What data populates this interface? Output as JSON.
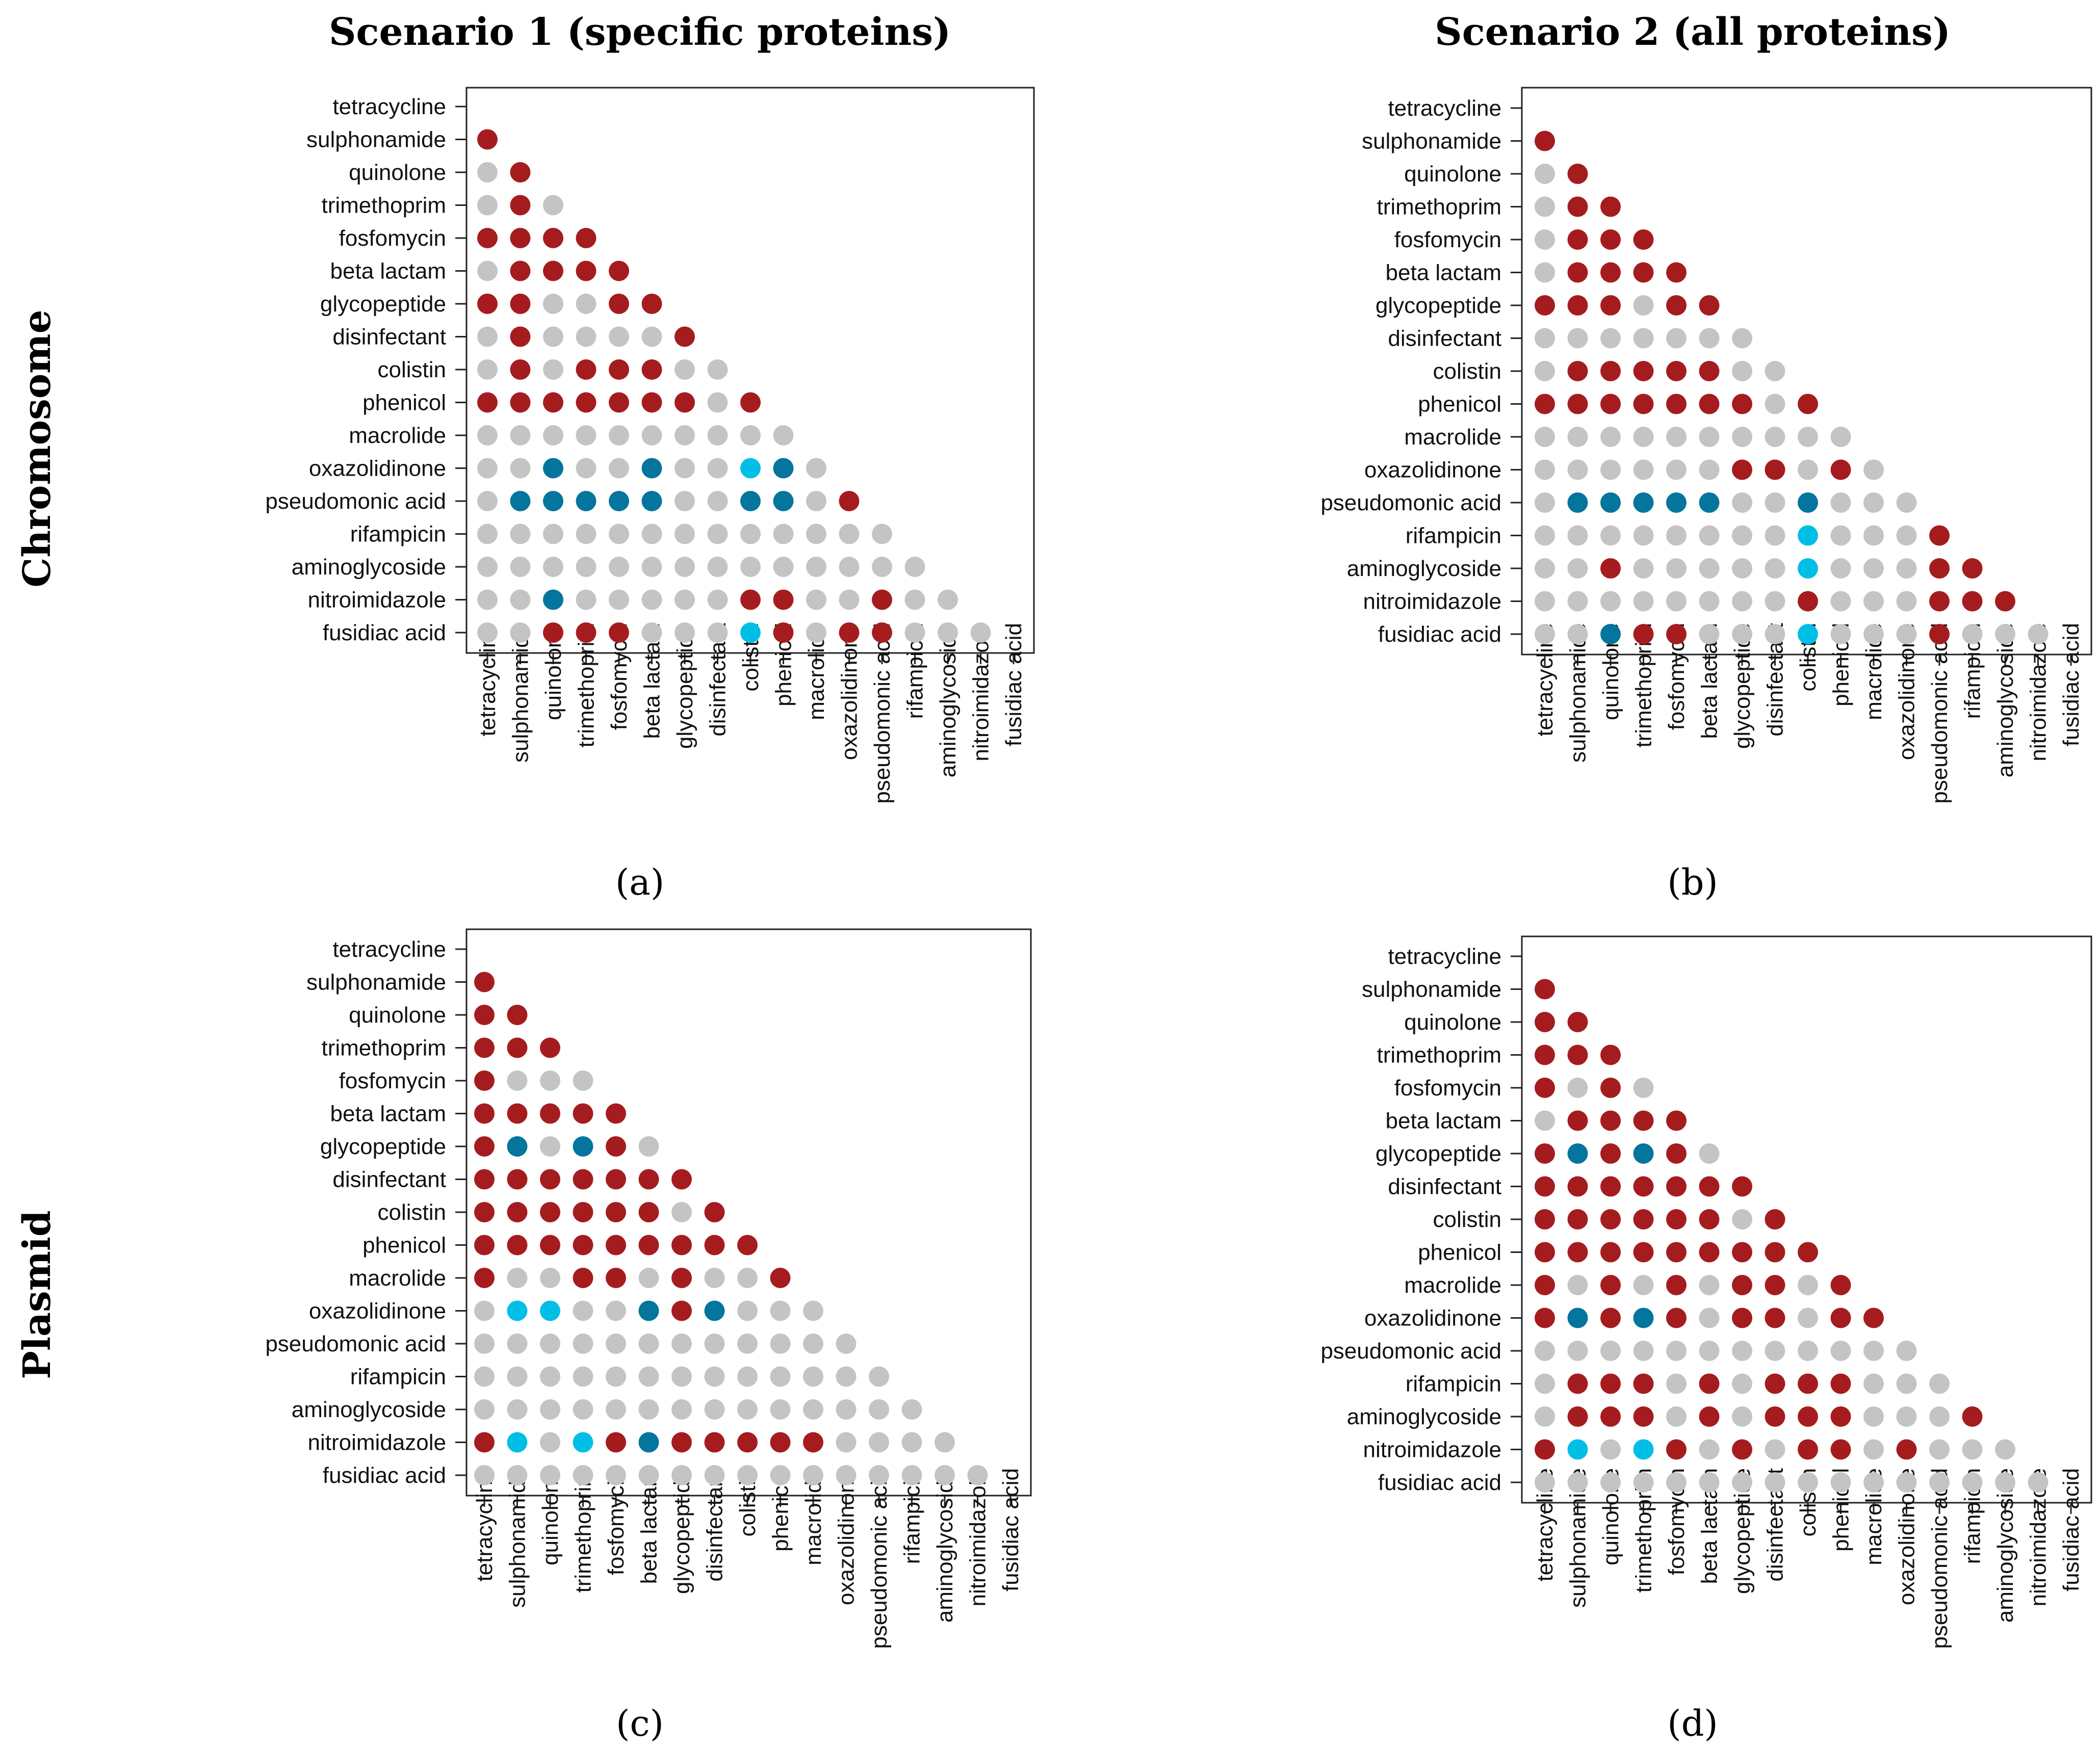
{
  "figure": {
    "column_titles": [
      "Scenario 1 (specific proteins)",
      "Scenario 2 (all proteins)"
    ],
    "row_titles": [
      "Chromosome",
      "Plasmid"
    ]
  },
  "colors": {
    "positive": "#a51c1f",
    "negative_strong": "#04759c",
    "negative_weak": "#00bfe6",
    "none": "#c4c4c4"
  },
  "legend_codes": {
    "0": "none",
    "1": "positive",
    "2": "negative_strong",
    "3": "negative_weak"
  },
  "chart_data": [
    {
      "type": "heatmap",
      "panel": "a",
      "panel_label": "(a)",
      "title": "Scenario 1 (specific proteins)",
      "row_group": "Chromosome",
      "categories": [
        "tetracycline",
        "sulphonamide",
        "quinolone",
        "trimethoprim",
        "fosfomycin",
        "beta lactam",
        "glycopeptide",
        "disinfectant",
        "colistin",
        "phenicol",
        "macrolide",
        "oxazolidinone",
        "pseudomonic acid",
        "rifampicin",
        "aminoglycoside",
        "nitroimidazole",
        "fusidiac acid"
      ],
      "matrix": [
        [
          1
        ],
        [
          0,
          1
        ],
        [
          0,
          1,
          0
        ],
        [
          1,
          1,
          1,
          1
        ],
        [
          0,
          1,
          1,
          1,
          1
        ],
        [
          1,
          1,
          0,
          0,
          1,
          1
        ],
        [
          0,
          1,
          0,
          0,
          0,
          0,
          1
        ],
        [
          0,
          1,
          0,
          1,
          1,
          1,
          0,
          0
        ],
        [
          1,
          1,
          1,
          1,
          1,
          1,
          1,
          0,
          1
        ],
        [
          0,
          0,
          0,
          0,
          0,
          0,
          0,
          0,
          0,
          0
        ],
        [
          0,
          0,
          2,
          0,
          0,
          2,
          0,
          0,
          3,
          2,
          0
        ],
        [
          0,
          2,
          2,
          2,
          2,
          2,
          0,
          0,
          2,
          2,
          0,
          1
        ],
        [
          0,
          0,
          0,
          0,
          0,
          0,
          0,
          0,
          0,
          0,
          0,
          0,
          0
        ],
        [
          0,
          0,
          0,
          0,
          0,
          0,
          0,
          0,
          0,
          0,
          0,
          0,
          0,
          0
        ],
        [
          0,
          0,
          2,
          0,
          0,
          0,
          0,
          0,
          1,
          1,
          0,
          0,
          1,
          0,
          0
        ],
        [
          0,
          0,
          1,
          1,
          1,
          0,
          0,
          0,
          3,
          1,
          0,
          1,
          1,
          0,
          0,
          0
        ]
      ]
    },
    {
      "type": "heatmap",
      "panel": "b",
      "panel_label": "(b)",
      "title": "Scenario 2 (all proteins)",
      "row_group": "Chromosome",
      "categories": [
        "tetracycline",
        "sulphonamide",
        "quinolone",
        "trimethoprim",
        "fosfomycin",
        "beta lactam",
        "glycopeptide",
        "disinfectant",
        "colistin",
        "phenicol",
        "macrolide",
        "oxazolidinone",
        "pseudomonic acid",
        "rifampicin",
        "aminoglycoside",
        "nitroimidazole",
        "fusidiac acid"
      ],
      "matrix": [
        [
          1
        ],
        [
          0,
          1
        ],
        [
          0,
          1,
          1
        ],
        [
          0,
          1,
          1,
          1
        ],
        [
          0,
          1,
          1,
          1,
          1
        ],
        [
          1,
          1,
          1,
          0,
          1,
          1
        ],
        [
          0,
          0,
          0,
          0,
          0,
          0,
          0
        ],
        [
          0,
          1,
          1,
          1,
          1,
          1,
          0,
          0
        ],
        [
          1,
          1,
          1,
          1,
          1,
          1,
          1,
          0,
          1
        ],
        [
          0,
          0,
          0,
          0,
          0,
          0,
          0,
          0,
          0,
          0
        ],
        [
          0,
          0,
          0,
          0,
          0,
          0,
          1,
          1,
          0,
          1,
          0
        ],
        [
          0,
          2,
          2,
          2,
          2,
          2,
          0,
          0,
          2,
          0,
          0,
          0
        ],
        [
          0,
          0,
          0,
          0,
          0,
          0,
          0,
          0,
          3,
          0,
          0,
          0,
          1
        ],
        [
          0,
          0,
          1,
          0,
          0,
          0,
          0,
          0,
          3,
          0,
          0,
          0,
          1,
          1
        ],
        [
          0,
          0,
          0,
          0,
          0,
          0,
          0,
          0,
          1,
          0,
          0,
          0,
          1,
          1,
          1
        ],
        [
          0,
          0,
          2,
          1,
          1,
          0,
          0,
          0,
          3,
          0,
          0,
          0,
          1,
          0,
          0,
          0
        ]
      ]
    },
    {
      "type": "heatmap",
      "panel": "c",
      "panel_label": "(c)",
      "title": "Scenario 1 (specific proteins)",
      "row_group": "Plasmid",
      "categories": [
        "tetracycline",
        "sulphonamide",
        "quinolone",
        "trimethoprim",
        "fosfomycin",
        "beta lactam",
        "glycopeptide",
        "disinfectant",
        "colistin",
        "phenicol",
        "macrolide",
        "oxazolidinone",
        "pseudomonic acid",
        "rifampicin",
        "aminoglycoside",
        "nitroimidazole",
        "fusidiac acid"
      ],
      "matrix": [
        [
          1
        ],
        [
          1,
          1
        ],
        [
          1,
          1,
          1
        ],
        [
          1,
          0,
          0,
          0
        ],
        [
          1,
          1,
          1,
          1,
          1
        ],
        [
          1,
          2,
          0,
          2,
          1,
          0
        ],
        [
          1,
          1,
          1,
          1,
          1,
          1,
          1
        ],
        [
          1,
          1,
          1,
          1,
          1,
          1,
          0,
          1
        ],
        [
          1,
          1,
          1,
          1,
          1,
          1,
          1,
          1,
          1
        ],
        [
          1,
          0,
          0,
          1,
          1,
          0,
          1,
          0,
          0,
          1
        ],
        [
          0,
          3,
          3,
          0,
          0,
          2,
          1,
          2,
          0,
          0,
          0
        ],
        [
          0,
          0,
          0,
          0,
          0,
          0,
          0,
          0,
          0,
          0,
          0,
          0
        ],
        [
          0,
          0,
          0,
          0,
          0,
          0,
          0,
          0,
          0,
          0,
          0,
          0,
          0
        ],
        [
          0,
          0,
          0,
          0,
          0,
          0,
          0,
          0,
          0,
          0,
          0,
          0,
          0,
          0
        ],
        [
          1,
          3,
          0,
          3,
          1,
          2,
          1,
          1,
          1,
          1,
          1,
          0,
          0,
          0,
          0
        ],
        [
          0,
          0,
          0,
          0,
          0,
          0,
          0,
          0,
          0,
          0,
          0,
          0,
          0,
          0,
          0,
          0
        ]
      ]
    },
    {
      "type": "heatmap",
      "panel": "d",
      "panel_label": "(d)",
      "title": "Scenario 2 (all proteins)",
      "row_group": "Plasmid",
      "categories": [
        "tetracycline",
        "sulphonamide",
        "quinolone",
        "trimethoprim",
        "fosfomycin",
        "beta lactam",
        "glycopeptide",
        "disinfectant",
        "colistin",
        "phenicol",
        "macrolide",
        "oxazolidinone",
        "pseudomonic acid",
        "rifampicin",
        "aminoglycoside",
        "nitroimidazole",
        "fusidiac acid"
      ],
      "matrix": [
        [
          1
        ],
        [
          1,
          1
        ],
        [
          1,
          1,
          1
        ],
        [
          1,
          0,
          1,
          0
        ],
        [
          0,
          1,
          1,
          1,
          1
        ],
        [
          1,
          2,
          1,
          2,
          1,
          0
        ],
        [
          1,
          1,
          1,
          1,
          1,
          1,
          1
        ],
        [
          1,
          1,
          1,
          1,
          1,
          1,
          0,
          1
        ],
        [
          1,
          1,
          1,
          1,
          1,
          1,
          1,
          1,
          1
        ],
        [
          1,
          0,
          1,
          0,
          1,
          0,
          1,
          1,
          0,
          1
        ],
        [
          1,
          2,
          1,
          2,
          1,
          0,
          1,
          1,
          0,
          1,
          1
        ],
        [
          0,
          0,
          0,
          0,
          0,
          0,
          0,
          0,
          0,
          0,
          0,
          0
        ],
        [
          0,
          1,
          1,
          1,
          0,
          1,
          0,
          1,
          1,
          1,
          0,
          0,
          0
        ],
        [
          0,
          1,
          1,
          1,
          0,
          1,
          0,
          1,
          1,
          1,
          0,
          0,
          0,
          1
        ],
        [
          1,
          3,
          0,
          3,
          1,
          0,
          1,
          0,
          1,
          1,
          0,
          1,
          0,
          0,
          0
        ],
        [
          0,
          0,
          0,
          0,
          0,
          0,
          0,
          0,
          0,
          0,
          0,
          0,
          0,
          0,
          0,
          0
        ]
      ]
    }
  ]
}
